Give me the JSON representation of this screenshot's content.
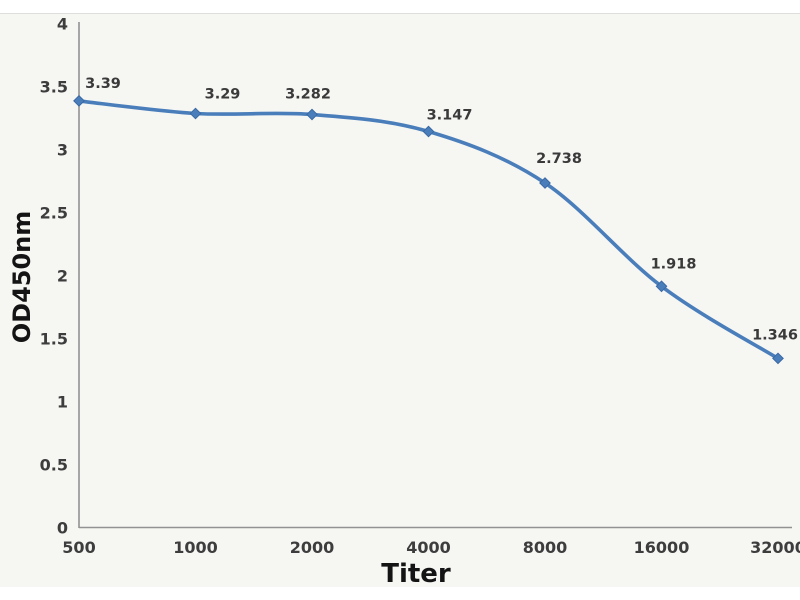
{
  "chart_data": {
    "type": "line",
    "title": "",
    "xlabel": "Titer",
    "ylabel": "OD450nm",
    "categories": [
      "500",
      "1000",
      "2000",
      "4000",
      "8000",
      "16000",
      "32000"
    ],
    "series": [
      {
        "name": "OD450nm",
        "values": [
          3.39,
          3.29,
          3.282,
          3.147,
          2.738,
          1.918,
          1.346
        ],
        "point_labels": [
          "3.39",
          "3.29",
          "3.282",
          "3.147",
          "2.738",
          "1.918",
          "1.346"
        ]
      }
    ],
    "ylim": [
      0,
      4
    ],
    "ytick_step": 0.5,
    "ytick_labels": [
      "0",
      "0.5",
      "1",
      "1.5",
      "2",
      "2.5",
      "3",
      "3.5",
      "4"
    ],
    "grid": false,
    "legend": false,
    "x_axis_scale": "categorical-log2-dilution",
    "colors": {
      "line": "#4a7ebb",
      "marker": "#4a7ebb",
      "marker_edge": "#3a69a3",
      "axis": "#929292",
      "tick_text": "#3d3d3d",
      "point_label_text": "#3a3a3a",
      "axis_title_text": "#141414",
      "plot_background": "#f6f6f3"
    }
  }
}
